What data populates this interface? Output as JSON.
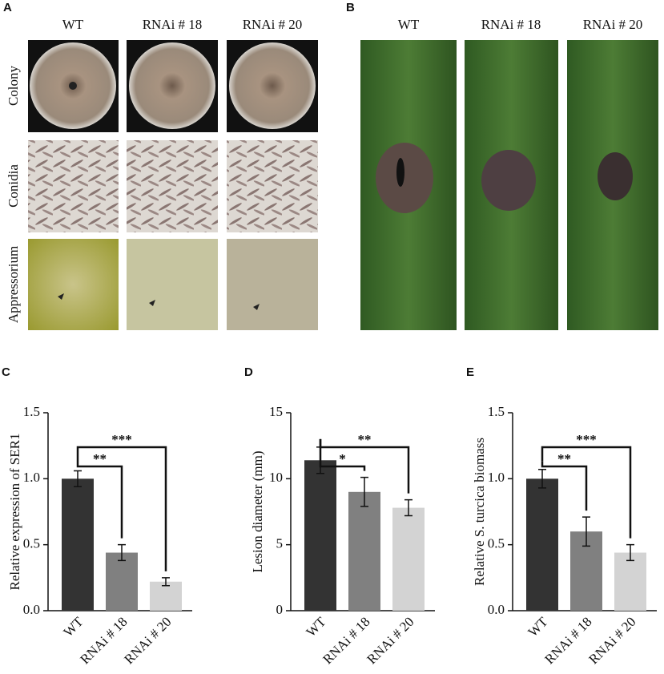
{
  "panel_a": {
    "label": "A",
    "columns": [
      "WT",
      "RNAi # 18",
      "RNAi # 20"
    ],
    "rows": [
      "Colony",
      "Conidia",
      "Appressorium"
    ]
  },
  "panel_b": {
    "label": "B",
    "columns": [
      "WT",
      "RNAi # 18",
      "RNAi # 20"
    ]
  },
  "chart_data": [
    {
      "type": "bar",
      "panel_label": "C",
      "ylabel": "Relative expression of SER1",
      "categories": [
        "WT",
        "RNAi # 18",
        "RNAi # 20"
      ],
      "values": [
        1.0,
        0.44,
        0.22
      ],
      "errors": [
        0.06,
        0.06,
        0.03
      ],
      "colors": [
        "#333333",
        "#808080",
        "#d3d3d3"
      ],
      "ylim": [
        0,
        1.5
      ],
      "yticks": [
        {
          "value": 0,
          "label": "0.0"
        },
        0.5,
        {
          "value": 1,
          "label": "1.0"
        },
        1.5
      ],
      "significance": [
        {
          "pair": [
            "WT",
            "RNAi # 18"
          ],
          "label": "**"
        },
        {
          "pair": [
            "WT",
            "RNAi # 20"
          ],
          "label": "***"
        }
      ]
    },
    {
      "type": "bar",
      "panel_label": "D",
      "ylabel": "Lesion diameter (mm)",
      "categories": [
        "WT",
        "RNAi # 18",
        "RNAi # 20"
      ],
      "values": [
        11.4,
        9.0,
        7.8
      ],
      "errors": [
        1.0,
        1.1,
        0.6
      ],
      "colors": [
        "#333333",
        "#808080",
        "#d3d3d3"
      ],
      "ylim": [
        0,
        15
      ],
      "yticks": [
        0,
        5,
        10,
        15
      ],
      "significance": [
        {
          "pair": [
            "WT",
            "RNAi # 18"
          ],
          "label": "*"
        },
        {
          "pair": [
            "WT",
            "RNAi # 20"
          ],
          "label": "**"
        }
      ]
    },
    {
      "type": "bar",
      "panel_label": "E",
      "ylabel": "Relative S. turcica biomass",
      "categories": [
        "WT",
        "RNAi # 18",
        "RNAi # 20"
      ],
      "values": [
        1.0,
        0.6,
        0.44
      ],
      "errors": [
        0.07,
        0.11,
        0.06
      ],
      "colors": [
        "#333333",
        "#808080",
        "#d3d3d3"
      ],
      "ylim": [
        0,
        1.5
      ],
      "yticks": [
        {
          "value": 0,
          "label": "0.0"
        },
        0.5,
        {
          "value": 1,
          "label": "1.0"
        },
        1.5
      ],
      "significance": [
        {
          "pair": [
            "WT",
            "RNAi # 18"
          ],
          "label": "**"
        },
        {
          "pair": [
            "WT",
            "RNAi # 20"
          ],
          "label": "***"
        }
      ]
    }
  ]
}
